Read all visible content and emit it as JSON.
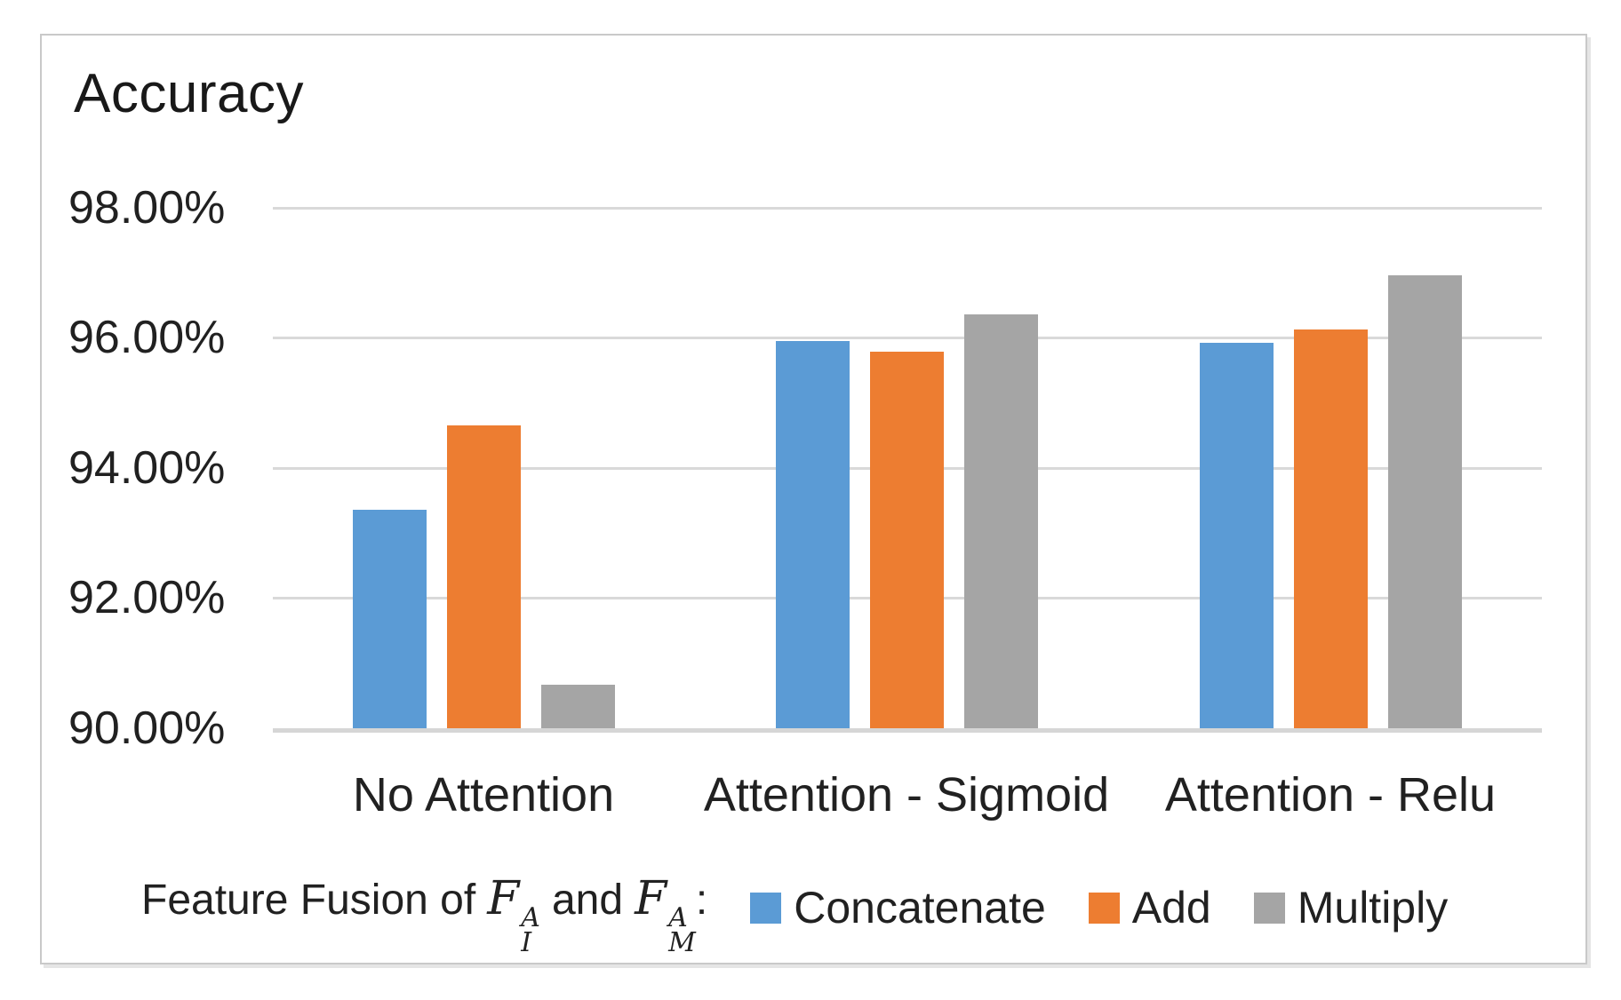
{
  "figure": {
    "title": "Accuracy"
  },
  "chart_data": {
    "type": "bar",
    "title": "Accuracy",
    "categories": [
      "No Attention",
      "Attention - Sigmoid",
      "Attention - Relu"
    ],
    "series": [
      {
        "name": "Concatenate",
        "color": "#5B9BD5",
        "values": [
          93.35,
          95.95,
          95.92
        ]
      },
      {
        "name": "Add",
        "color": "#ED7D31",
        "values": [
          94.65,
          95.79,
          96.13
        ]
      },
      {
        "name": "Multiply",
        "color": "#A5A5A5",
        "values": [
          90.67,
          96.36,
          96.96
        ]
      }
    ],
    "y_ticks": [
      "98.00%",
      "96.00%",
      "94.00%",
      "92.00%",
      "90.00%"
    ],
    "y_tick_values": [
      98,
      96,
      94,
      92,
      90
    ],
    "ylim": [
      90,
      98.5
    ],
    "grid": "horizontal-only",
    "legend_position": "bottom",
    "legend_caption": "Feature Fusion of F_I^A and F_M^A:"
  },
  "legend": {
    "caption_prefix": "Feature Fusion of",
    "math_terms": [
      {
        "base": "F",
        "sup": "A",
        "sub": "I"
      },
      {
        "base": "F",
        "sup": "A",
        "sub": "M"
      }
    ],
    "conjunction": "and",
    "colon": ":",
    "items": [
      {
        "label": "Concatenate",
        "color": "#5B9BD5"
      },
      {
        "label": "Add",
        "color": "#ED7D31"
      },
      {
        "label": "Multiply",
        "color": "#A5A5A5"
      }
    ]
  },
  "colors": {
    "gridline": "#d9d9d9",
    "axis_line": "#d6d6d6",
    "border": "#c9c9c9",
    "text": "#212121",
    "background": "#ffffff"
  }
}
